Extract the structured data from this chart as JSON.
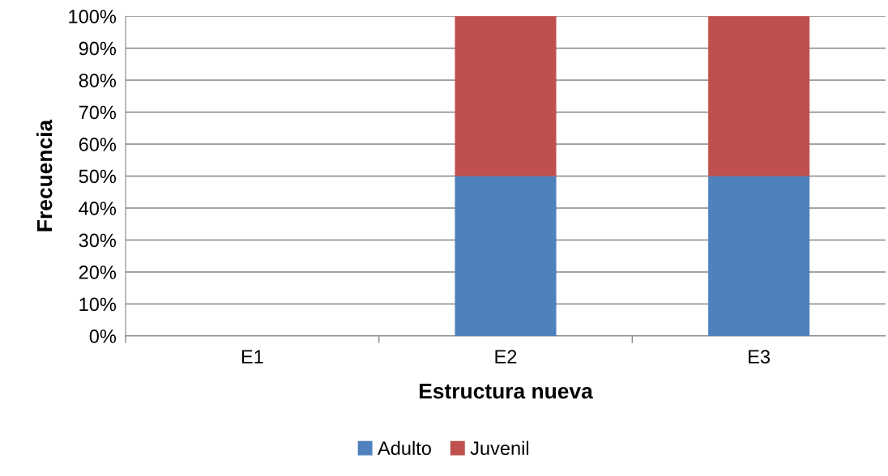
{
  "chart_data": {
    "type": "bar",
    "stacked": true,
    "xlabel": "Estructura nueva",
    "ylabel": "Frecuencia",
    "categories": [
      "E1",
      "E2",
      "E3"
    ],
    "series": [
      {
        "name": "Adulto",
        "color": "#4f81bd",
        "values": [
          0,
          50,
          50
        ]
      },
      {
        "name": "Juvenil",
        "color": "#c0504d",
        "values": [
          0,
          50,
          50
        ]
      }
    ],
    "ylim": [
      0,
      100
    ],
    "yticks": [
      {
        "value": 0,
        "label": "0%"
      },
      {
        "value": 10,
        "label": "10%"
      },
      {
        "value": 20,
        "label": "20%"
      },
      {
        "value": 30,
        "label": "30%"
      },
      {
        "value": 40,
        "label": "40%"
      },
      {
        "value": 50,
        "label": "50%"
      },
      {
        "value": 60,
        "label": "60%"
      },
      {
        "value": 70,
        "label": "70%"
      },
      {
        "value": 80,
        "label": "80%"
      },
      {
        "value": 90,
        "label": "90%"
      },
      {
        "value": 100,
        "label": "100%"
      }
    ],
    "grid": "y",
    "legend": "bottom"
  }
}
